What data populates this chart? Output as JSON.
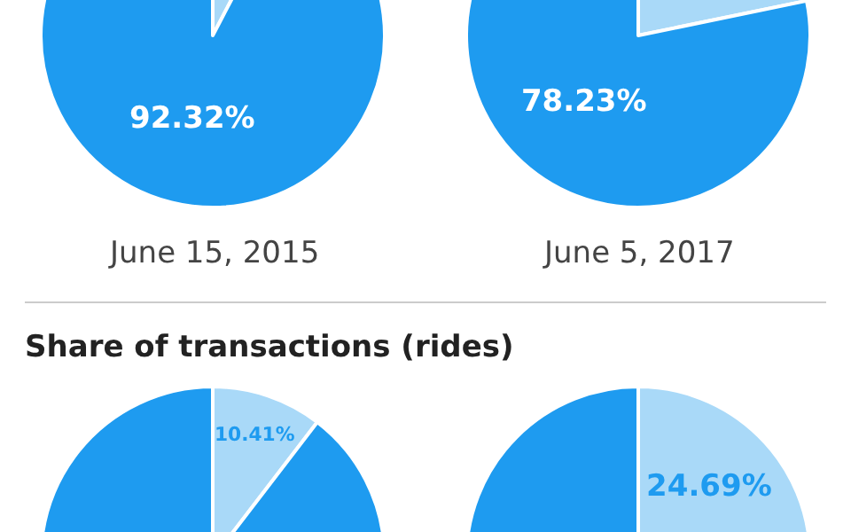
{
  "chart_data": [
    {
      "type": "pie",
      "title": "June 15, 2015",
      "categories": [
        null,
        null
      ],
      "values": [
        7.68,
        92.32
      ],
      "colors": [
        "#a9d9f8",
        "#1e9bf0"
      ],
      "value_labels": [
        null,
        "92.32%"
      ]
    },
    {
      "type": "pie",
      "title": "June 5, 2017",
      "categories": [
        null,
        null
      ],
      "values": [
        21.77,
        78.23
      ],
      "colors": [
        "#a9d9f8",
        "#1e9bf0"
      ],
      "value_labels": [
        null,
        "78.23%"
      ]
    },
    {
      "type": "pie",
      "title": "Share of transactions (rides)",
      "categories": [
        null,
        null
      ],
      "values": [
        10.41,
        89.59
      ],
      "colors": [
        "#a9d9f8",
        "#1e9bf0"
      ],
      "value_labels": [
        "10.41%",
        null
      ]
    },
    {
      "type": "pie",
      "categories": [
        null,
        null
      ],
      "values": [
        24.69,
        75.31
      ],
      "colors": [
        "#a9d9f8",
        "#1e9bf0"
      ],
      "value_labels": [
        "24.69%",
        null
      ]
    }
  ]
}
